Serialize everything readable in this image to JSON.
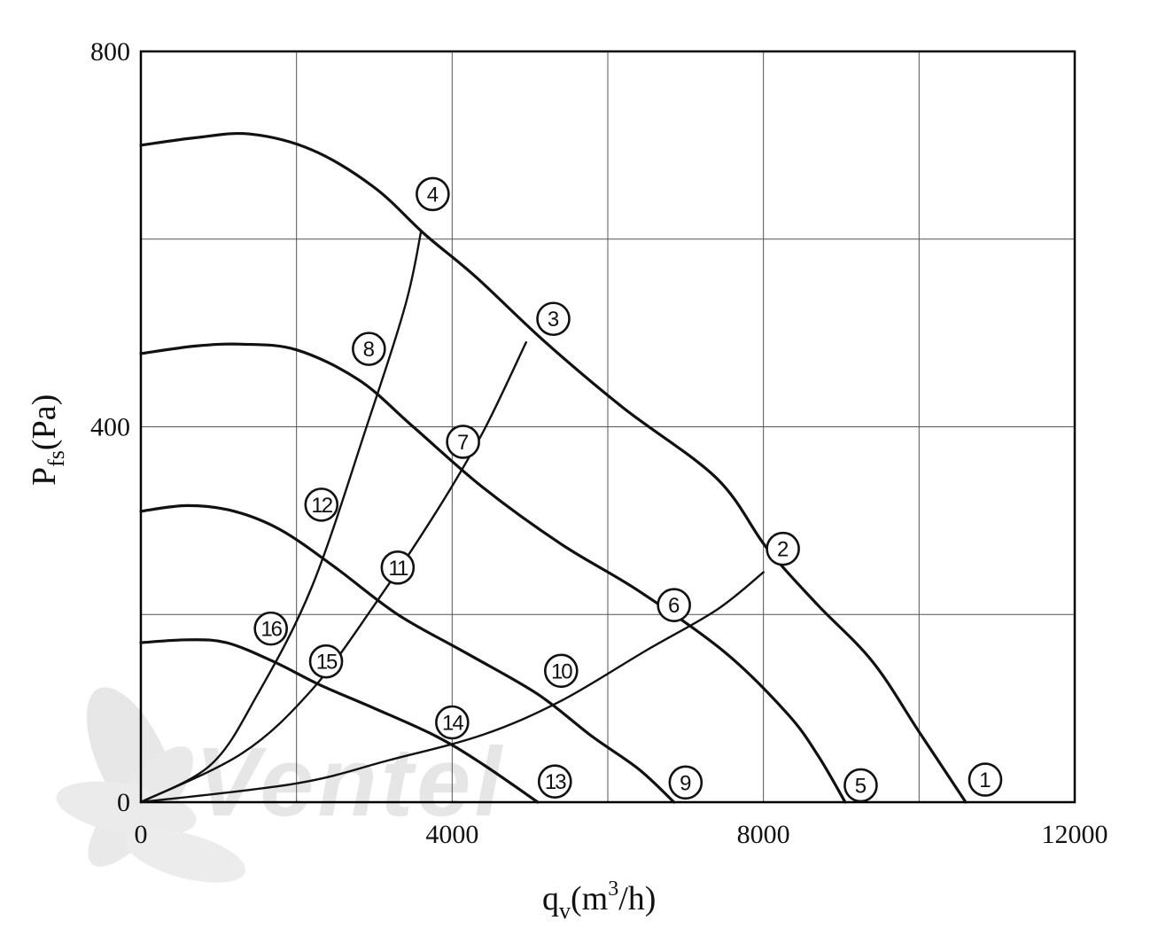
{
  "chart_data": {
    "type": "line",
    "title": "",
    "xlabel": {
      "base": "q",
      "sub": "v",
      "unit_pre": "(m",
      "sup": "3",
      "unit_post": "/h)"
    },
    "ylabel": {
      "base": "P",
      "sub": "fs",
      "unit": "(Pa)"
    },
    "xlim": [
      0,
      12000
    ],
    "ylim": [
      0,
      800
    ],
    "x_ticks": [
      0,
      4000,
      8000,
      12000
    ],
    "x_tick_labels": [
      "0",
      "4000",
      "8000",
      "12000"
    ],
    "y_ticks": [
      0,
      400,
      800
    ],
    "y_tick_labels": [
      "0",
      "400",
      "800"
    ],
    "x_grid": [
      0,
      2000,
      4000,
      6000,
      8000,
      10000,
      12000
    ],
    "y_grid": [
      0,
      200,
      400,
      600,
      800
    ],
    "grid": true,
    "fan_curves": [
      {
        "name": "1",
        "points": [
          [
            0,
            700
          ],
          [
            700,
            708
          ],
          [
            1400,
            712
          ],
          [
            2200,
            695
          ],
          [
            3000,
            655
          ],
          [
            3650,
            605
          ],
          [
            4300,
            560
          ],
          [
            5200,
            490
          ],
          [
            6200,
            420
          ],
          [
            7400,
            345
          ],
          [
            8050,
            270
          ],
          [
            8700,
            210
          ],
          [
            9400,
            150
          ],
          [
            10000,
            75
          ],
          [
            10600,
            0
          ]
        ]
      },
      {
        "name": "5",
        "points": [
          [
            0,
            478
          ],
          [
            700,
            486
          ],
          [
            1300,
            488
          ],
          [
            2000,
            482
          ],
          [
            2800,
            450
          ],
          [
            3500,
            400
          ],
          [
            4400,
            335
          ],
          [
            5400,
            275
          ],
          [
            6400,
            225
          ],
          [
            7500,
            160
          ],
          [
            8300,
            95
          ],
          [
            8700,
            50
          ],
          [
            9050,
            0
          ]
        ]
      },
      {
        "name": "9",
        "points": [
          [
            0,
            310
          ],
          [
            600,
            316
          ],
          [
            1200,
            310
          ],
          [
            1800,
            290
          ],
          [
            2500,
            250
          ],
          [
            3300,
            200
          ],
          [
            4200,
            158
          ],
          [
            5100,
            115
          ],
          [
            5800,
            70
          ],
          [
            6400,
            35
          ],
          [
            6850,
            0
          ]
        ]
      },
      {
        "name": "13",
        "points": [
          [
            0,
            170
          ],
          [
            600,
            173
          ],
          [
            1100,
            170
          ],
          [
            1700,
            150
          ],
          [
            2300,
            125
          ],
          [
            3000,
            100
          ],
          [
            3800,
            70
          ],
          [
            4400,
            40
          ],
          [
            5100,
            0
          ]
        ]
      }
    ],
    "system_curves": [
      {
        "name": "4-8",
        "points": [
          [
            0,
            0
          ],
          [
            900,
            40
          ],
          [
            1500,
            115
          ],
          [
            2200,
            230
          ],
          [
            2900,
            400
          ],
          [
            3400,
            530
          ],
          [
            3600,
            608
          ]
        ]
      },
      {
        "name": "3-7",
        "points": [
          [
            0,
            0
          ],
          [
            1300,
            52
          ],
          [
            2200,
            120
          ],
          [
            3000,
            210
          ],
          [
            3800,
            310
          ],
          [
            4400,
            395
          ],
          [
            4950,
            490
          ]
        ]
      },
      {
        "name": "2-6",
        "points": [
          [
            0,
            0
          ],
          [
            2000,
            20
          ],
          [
            3200,
            45
          ],
          [
            4400,
            72
          ],
          [
            5400,
            108
          ],
          [
            6500,
            162
          ],
          [
            7400,
            205
          ],
          [
            8000,
            245
          ]
        ]
      }
    ],
    "point_labels": [
      {
        "text": "1",
        "at": [
          10850,
          24
        ]
      },
      {
        "text": "2",
        "at": [
          8250,
          270
        ]
      },
      {
        "text": "3",
        "at": [
          5300,
          515
        ]
      },
      {
        "text": "4",
        "at": [
          3750,
          648
        ]
      },
      {
        "text": "5",
        "at": [
          9250,
          18
        ]
      },
      {
        "text": "6",
        "at": [
          6850,
          210
        ]
      },
      {
        "text": "7",
        "at": [
          4140,
          384
        ]
      },
      {
        "text": "8",
        "at": [
          2930,
          483
        ]
      },
      {
        "text": "9",
        "at": [
          7000,
          21
        ]
      },
      {
        "text": "10",
        "at": [
          5400,
          140
        ]
      },
      {
        "text": "11",
        "at": [
          3300,
          250
        ]
      },
      {
        "text": "12",
        "at": [
          2320,
          317
        ]
      },
      {
        "text": "13",
        "at": [
          5320,
          22
        ]
      },
      {
        "text": "14",
        "at": [
          4000,
          85
        ]
      },
      {
        "text": "15",
        "at": [
          2380,
          150
        ]
      },
      {
        "text": "16",
        "at": [
          1670,
          185
        ]
      }
    ]
  },
  "watermark": {
    "text": "Ventel",
    "color": "#d6d6d6",
    "accent": "#d3e6f5"
  }
}
